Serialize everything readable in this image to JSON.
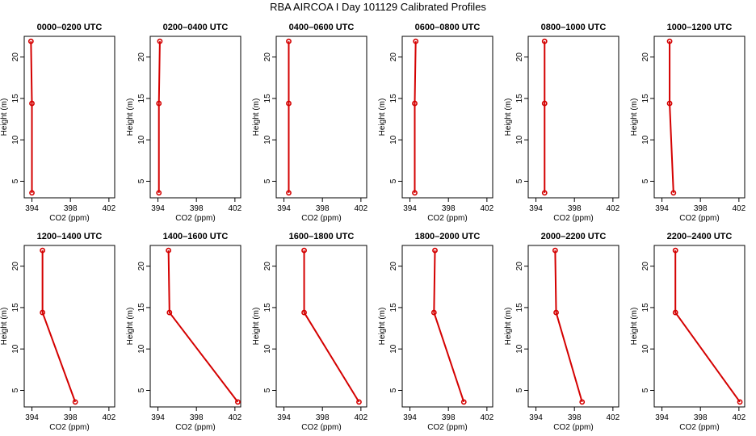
{
  "figure": {
    "title": "RBA AIRCOA I  Day 101129  Calibrated Profiles"
  },
  "chart_data": {
    "type": "line",
    "title": "RBA AIRCOA I  Day 101129  Calibrated Profiles",
    "xlabel": "CO2 (ppm)",
    "ylabel": "Height (m)",
    "xlim": [
      393.2,
      402.6
    ],
    "ylim": [
      3.0,
      22.5
    ],
    "xticks": [
      394,
      398,
      402
    ],
    "yticks": [
      5,
      10,
      15,
      20
    ],
    "grid": false,
    "line_color": "#d40000",
    "layout": "2x6",
    "panels": [
      {
        "title": "0000–0200 UTC",
        "x": [
          394.0,
          394.0,
          393.9
        ],
        "y": [
          3.6,
          14.4,
          21.9
        ]
      },
      {
        "title": "0200–0400 UTC",
        "x": [
          394.1,
          394.1,
          394.2
        ],
        "y": [
          3.6,
          14.4,
          21.9
        ]
      },
      {
        "title": "0400–0600 UTC",
        "x": [
          394.5,
          394.5,
          394.5
        ],
        "y": [
          3.6,
          14.4,
          21.9
        ]
      },
      {
        "title": "0600–0800 UTC",
        "x": [
          394.5,
          394.5,
          394.6
        ],
        "y": [
          3.6,
          14.4,
          21.9
        ]
      },
      {
        "title": "0800–1000 UTC",
        "x": [
          394.9,
          394.9,
          394.9
        ],
        "y": [
          3.6,
          14.4,
          21.9
        ]
      },
      {
        "title": "1000–1200 UTC",
        "x": [
          395.2,
          394.8,
          394.8
        ],
        "y": [
          3.6,
          14.4,
          21.9
        ]
      },
      {
        "title": "1200–1400 UTC",
        "x": [
          398.5,
          395.1,
          395.1
        ],
        "y": [
          3.6,
          14.4,
          21.9
        ]
      },
      {
        "title": "1400–1600 UTC",
        "x": [
          402.3,
          395.2,
          395.1
        ],
        "y": [
          3.6,
          14.4,
          21.9
        ]
      },
      {
        "title": "1600–1800 UTC",
        "x": [
          401.8,
          396.1,
          396.1
        ],
        "y": [
          3.6,
          14.4,
          21.9
        ]
      },
      {
        "title": "1800–2000 UTC",
        "x": [
          399.6,
          396.5,
          396.6
        ],
        "y": [
          3.6,
          14.4,
          21.9
        ]
      },
      {
        "title": "2000–2200 UTC",
        "x": [
          398.8,
          396.1,
          396.0
        ],
        "y": [
          3.6,
          14.4,
          21.9
        ]
      },
      {
        "title": "2200–2400 UTC",
        "x": [
          402.1,
          395.4,
          395.4
        ],
        "y": [
          3.6,
          14.4,
          21.9
        ]
      }
    ]
  }
}
